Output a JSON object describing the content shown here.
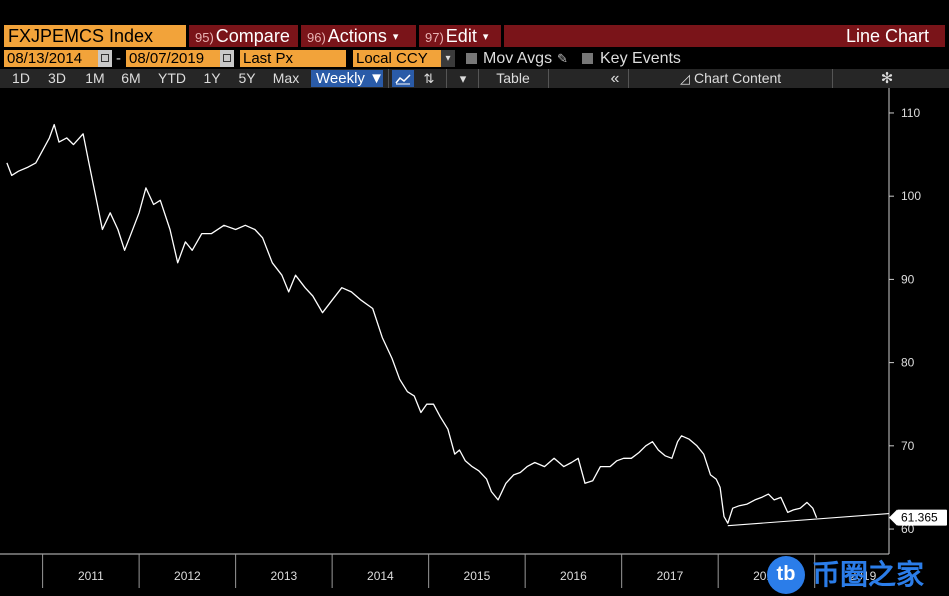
{
  "toolbar": {
    "ticker": "FXJPEMCS Index",
    "compare": {
      "num": "95)",
      "label": "Compare"
    },
    "actions": {
      "num": "96)",
      "label": "Actions"
    },
    "edit": {
      "num": "97)",
      "label": "Edit"
    },
    "chart_type": "Line Chart"
  },
  "params": {
    "start_date": "08/13/2014",
    "separator": "-",
    "end_date": "08/07/2019",
    "field": "Last Px",
    "currency": "Local CCY",
    "mov_avgs": "Mov Avgs",
    "key_events": "Key Events"
  },
  "ranges": {
    "buttons": [
      "1D",
      "3D",
      "1M",
      "6M",
      "YTD",
      "1Y",
      "5Y",
      "Max"
    ],
    "frequency": "Weekly ▼",
    "table": "Table",
    "chart_content": "Chart Content"
  },
  "last_value": "61.365",
  "watermark": {
    "logo": "tb",
    "text": "币圈之家"
  },
  "colors": {
    "toolbar_red": "#7a1419",
    "field_orange": "#f2a33a",
    "accent_blue": "#2a5ba8",
    "line": "#ffffff"
  },
  "chart_data": {
    "type": "line",
    "title": "",
    "xlabel": "",
    "ylabel": "",
    "ylim": [
      57,
      113
    ],
    "yticks": [
      60,
      70,
      80,
      90,
      100,
      110
    ],
    "x_year_labels": [
      "2011",
      "2012",
      "2013",
      "2014",
      "2015",
      "2016",
      "2017",
      "2018",
      "2019"
    ],
    "xlim": [
      2010.6,
      2019.77
    ],
    "last_value": 61.365,
    "series": [
      {
        "points": [
          [
            2010.63,
            104
          ],
          [
            2010.68,
            102.5
          ],
          [
            2010.75,
            103
          ],
          [
            2010.85,
            103.5
          ],
          [
            2010.93,
            104
          ],
          [
            2011.0,
            105.5
          ],
          [
            2011.07,
            107
          ],
          [
            2011.12,
            108.6
          ],
          [
            2011.17,
            106.5
          ],
          [
            2011.25,
            107
          ],
          [
            2011.32,
            106.2
          ],
          [
            2011.42,
            107.5
          ],
          [
            2011.48,
            104
          ],
          [
            2011.55,
            100
          ],
          [
            2011.62,
            96
          ],
          [
            2011.7,
            98
          ],
          [
            2011.78,
            96
          ],
          [
            2011.85,
            93.5
          ],
          [
            2011.9,
            95
          ],
          [
            2012.0,
            98
          ],
          [
            2012.07,
            101
          ],
          [
            2012.15,
            99
          ],
          [
            2012.22,
            99.5
          ],
          [
            2012.32,
            96
          ],
          [
            2012.4,
            92
          ],
          [
            2012.48,
            94.5
          ],
          [
            2012.55,
            93.5
          ],
          [
            2012.65,
            95.5
          ],
          [
            2012.75,
            95.5
          ],
          [
            2012.88,
            96.5
          ],
          [
            2013.0,
            96
          ],
          [
            2013.1,
            96.5
          ],
          [
            2013.2,
            96
          ],
          [
            2013.28,
            95
          ],
          [
            2013.38,
            92
          ],
          [
            2013.48,
            90.5
          ],
          [
            2013.55,
            88.5
          ],
          [
            2013.62,
            90.5
          ],
          [
            2013.72,
            89
          ],
          [
            2013.8,
            88
          ],
          [
            2013.9,
            86
          ],
          [
            2014.0,
            87.5
          ],
          [
            2014.1,
            89
          ],
          [
            2014.2,
            88.5
          ],
          [
            2014.3,
            87.5
          ],
          [
            2014.42,
            86.5
          ],
          [
            2014.52,
            83
          ],
          [
            2014.62,
            80.5
          ],
          [
            2014.7,
            78
          ],
          [
            2014.78,
            76.5
          ],
          [
            2014.85,
            76
          ],
          [
            2014.92,
            74
          ],
          [
            2014.98,
            75
          ],
          [
            2015.05,
            75
          ],
          [
            2015.12,
            73.5
          ],
          [
            2015.2,
            72
          ],
          [
            2015.27,
            69
          ],
          [
            2015.32,
            69.5
          ],
          [
            2015.38,
            68.2
          ],
          [
            2015.45,
            67.5
          ],
          [
            2015.52,
            67
          ],
          [
            2015.6,
            66
          ],
          [
            2015.65,
            64.5
          ],
          [
            2015.72,
            63.5
          ],
          [
            2015.8,
            65.5
          ],
          [
            2015.88,
            66.5
          ],
          [
            2015.95,
            66.8
          ],
          [
            2016.02,
            67.5
          ],
          [
            2016.1,
            68
          ],
          [
            2016.2,
            67.5
          ],
          [
            2016.3,
            68.5
          ],
          [
            2016.4,
            67.5
          ],
          [
            2016.48,
            68
          ],
          [
            2016.55,
            68.5
          ],
          [
            2016.62,
            65.5
          ],
          [
            2016.7,
            65.8
          ],
          [
            2016.78,
            67.5
          ],
          [
            2016.88,
            67.5
          ],
          [
            2016.95,
            68.2
          ],
          [
            2017.02,
            68.5
          ],
          [
            2017.1,
            68.5
          ],
          [
            2017.18,
            69.2
          ],
          [
            2017.25,
            70
          ],
          [
            2017.32,
            70.5
          ],
          [
            2017.38,
            69.5
          ],
          [
            2017.45,
            68.8
          ],
          [
            2017.52,
            68.5
          ],
          [
            2017.58,
            70.5
          ],
          [
            2017.62,
            71.2
          ],
          [
            2017.7,
            70.8
          ],
          [
            2017.78,
            70
          ],
          [
            2017.85,
            69
          ],
          [
            2017.92,
            66.5
          ],
          [
            2017.98,
            66
          ],
          [
            2018.02,
            65
          ],
          [
            2018.06,
            61.5
          ],
          [
            2018.1,
            60.7
          ],
          [
            2018.15,
            62.5
          ],
          [
            2018.22,
            62.8
          ],
          [
            2018.3,
            63
          ],
          [
            2018.38,
            63.5
          ],
          [
            2018.45,
            63.8
          ],
          [
            2018.52,
            64.2
          ],
          [
            2018.58,
            63.5
          ],
          [
            2018.65,
            63.8
          ],
          [
            2018.72,
            62
          ],
          [
            2018.78,
            62.3
          ],
          [
            2018.85,
            62.5
          ],
          [
            2018.92,
            63.2
          ],
          [
            2018.98,
            62.5
          ],
          [
            2019.02,
            61.365
          ]
        ]
      }
    ],
    "trendline": [
      [
        2018.1,
        60.4
      ],
      [
        2019.02,
        61.2
      ]
    ]
  }
}
